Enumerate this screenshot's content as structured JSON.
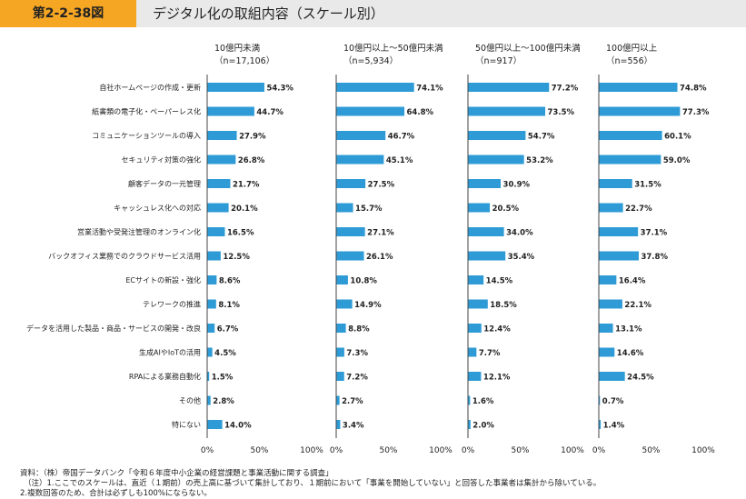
{
  "header": {
    "figure_number": "第2-2-38図",
    "title": "デジタル化の取組内容（スケール別）"
  },
  "chart_data": {
    "type": "bar",
    "orientation": "horizontal",
    "title": "デジタル化の取組内容（スケール別）",
    "categories": [
      "自社ホームページの作成・更新",
      "紙書類の電子化・ペーパーレス化",
      "コミュニケーションツールの導入",
      "セキュリティ対策の強化",
      "顧客データの一元管理",
      "キャッシュレス化への対応",
      "営業活動や受発注管理のオンライン化",
      "バックオフィス業務でのクラウドサービス活用",
      "ECサイトの新設・強化",
      "テレワークの推進",
      "データを活用した製品・商品・サービスの開発・改良",
      "生成AIやIoTの活用",
      "RPAによる業務自動化",
      "その他",
      "特にない"
    ],
    "series": [
      {
        "name": "10億円未満",
        "n_label": "（n=17,106）",
        "values": [
          54.3,
          44.7,
          27.9,
          26.8,
          21.7,
          20.1,
          16.5,
          12.5,
          8.6,
          8.1,
          6.7,
          4.5,
          1.5,
          2.8,
          14.0
        ]
      },
      {
        "name": "10億円以上～50億円未満",
        "n_label": "（n=5,934）",
        "values": [
          74.1,
          64.8,
          46.7,
          45.1,
          27.5,
          15.7,
          27.1,
          26.1,
          10.8,
          14.9,
          8.8,
          7.3,
          7.2,
          2.7,
          3.4
        ]
      },
      {
        "name": "50億円以上～100億円未満",
        "n_label": "（n=917）",
        "values": [
          77.2,
          73.5,
          54.7,
          53.2,
          30.9,
          20.5,
          34.0,
          35.4,
          14.5,
          18.5,
          12.4,
          7.7,
          12.1,
          1.6,
          2.0
        ]
      },
      {
        "name": "100億円以上",
        "n_label": "（n=556）",
        "values": [
          74.8,
          77.3,
          60.1,
          59.0,
          31.5,
          22.7,
          37.1,
          37.8,
          16.4,
          22.1,
          13.1,
          14.6,
          24.5,
          0.7,
          1.4
        ]
      }
    ],
    "xlim": [
      0,
      100
    ],
    "xticks": [
      "0%",
      "50%",
      "100%"
    ],
    "unit": "%",
    "bar_color": "#2e9bd6"
  },
  "notes": {
    "source": "資料：（株）帝国データバンク「令和６年度中小企業の経営課題と事業活動に関する調査」",
    "note1": "（注）1.ここでのスケールは、直近（１期前）の売上高に基づいて集計しており、１期前において「事業を開始していない」と回答した事業者は集計から除いている。",
    "note2": "2.複数回答のため、合計は必ずしも100%にならない。"
  }
}
